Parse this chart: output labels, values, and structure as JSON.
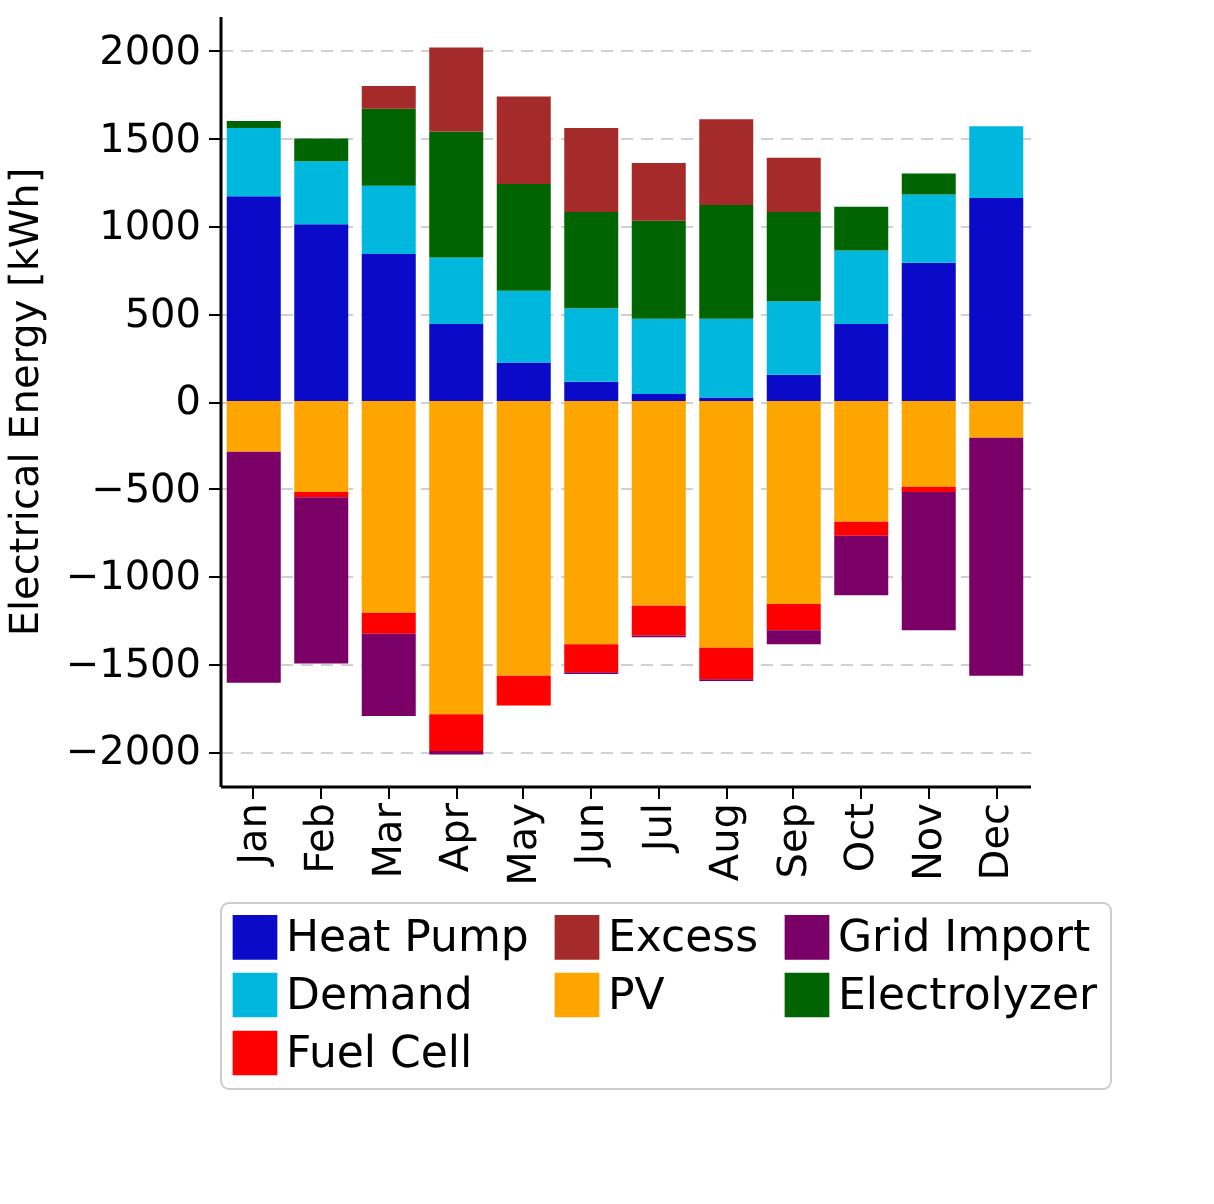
{
  "chart_data": {
    "type": "bar",
    "stacked": true,
    "ylabel": "Electrical Energy [kWh]",
    "categories": [
      "Jan",
      "Feb",
      "Mar",
      "Apr",
      "May",
      "Jun",
      "Jul",
      "Aug",
      "Sep",
      "Oct",
      "Nov",
      "Dec"
    ],
    "series": [
      {
        "name": "Heat Pump",
        "color": "#0a0ac8",
        "values": [
          1170,
          1010,
          840,
          440,
          220,
          110,
          40,
          20,
          150,
          440,
          790,
          1160
        ]
      },
      {
        "name": "Demand",
        "color": "#00b8de",
        "values": [
          390,
          360,
          390,
          380,
          410,
          420,
          430,
          450,
          420,
          420,
          390,
          410
        ]
      },
      {
        "name": "Electrolyzer",
        "color": "#006400",
        "values": [
          40,
          130,
          440,
          720,
          610,
          550,
          560,
          650,
          510,
          250,
          120,
          0
        ]
      },
      {
        "name": "Excess",
        "color": "#a52a2a",
        "values": [
          0,
          0,
          130,
          480,
          500,
          480,
          330,
          490,
          310,
          0,
          0,
          0
        ]
      },
      {
        "name": "PV",
        "color": "#ffa500",
        "values": [
          -290,
          -520,
          -1210,
          -1790,
          -1570,
          -1390,
          -1170,
          -1410,
          -1160,
          -690,
          -490,
          -210
        ]
      },
      {
        "name": "Fuel Cell",
        "color": "#ff0000",
        "values": [
          0,
          -30,
          -120,
          -210,
          -170,
          -160,
          -170,
          -180,
          -150,
          -80,
          -30,
          0
        ]
      },
      {
        "name": "Grid Import",
        "color": "#7a0068",
        "values": [
          -1320,
          -950,
          -470,
          -20,
          0,
          -10,
          -10,
          -10,
          -80,
          -340,
          -790,
          -1360
        ]
      }
    ],
    "ylim": [
      -2200,
      2200
    ],
    "yticks": [
      -2000,
      -1500,
      -1000,
      -500,
      0,
      500,
      1000,
      1500,
      2000
    ],
    "grid": "y",
    "legend": "bottom"
  }
}
